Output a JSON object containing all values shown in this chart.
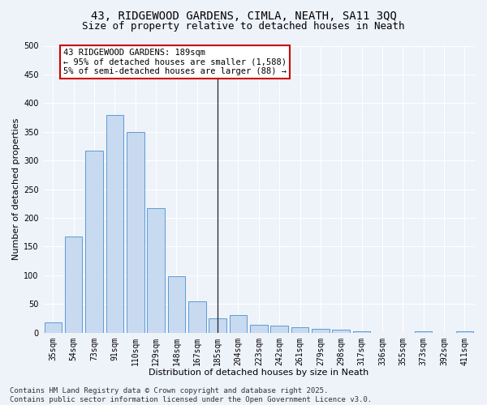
{
  "title_line1": "43, RIDGEWOOD GARDENS, CIMLA, NEATH, SA11 3QQ",
  "title_line2": "Size of property relative to detached houses in Neath",
  "xlabel": "Distribution of detached houses by size in Neath",
  "ylabel": "Number of detached properties",
  "categories": [
    "35sqm",
    "54sqm",
    "73sqm",
    "91sqm",
    "110sqm",
    "129sqm",
    "148sqm",
    "167sqm",
    "185sqm",
    "204sqm",
    "223sqm",
    "242sqm",
    "261sqm",
    "279sqm",
    "298sqm",
    "317sqm",
    "336sqm",
    "355sqm",
    "373sqm",
    "392sqm",
    "411sqm"
  ],
  "values": [
    18,
    167,
    317,
    379,
    349,
    217,
    98,
    55,
    25,
    30,
    14,
    12,
    10,
    6,
    5,
    2,
    0,
    0,
    2,
    0,
    2
  ],
  "bar_color": "#c8daf0",
  "bar_edge_color": "#5b9bd5",
  "vline_x": 8,
  "annotation_text": "43 RIDGEWOOD GARDENS: 189sqm\n← 95% of detached houses are smaller (1,588)\n5% of semi-detached houses are larger (88) →",
  "annotation_box_color": "#ffffff",
  "annotation_box_edge_color": "#cc0000",
  "ylim": [
    0,
    500
  ],
  "yticks": [
    0,
    50,
    100,
    150,
    200,
    250,
    300,
    350,
    400,
    450,
    500
  ],
  "footer_line1": "Contains HM Land Registry data © Crown copyright and database right 2025.",
  "footer_line2": "Contains public sector information licensed under the Open Government Licence v3.0.",
  "bg_color": "#eef2f9",
  "grid_color": "#ffffff",
  "title_fontsize": 10,
  "subtitle_fontsize": 9,
  "axis_label_fontsize": 8,
  "tick_fontsize": 7,
  "annotation_fontsize": 7.5,
  "footer_fontsize": 6.5
}
